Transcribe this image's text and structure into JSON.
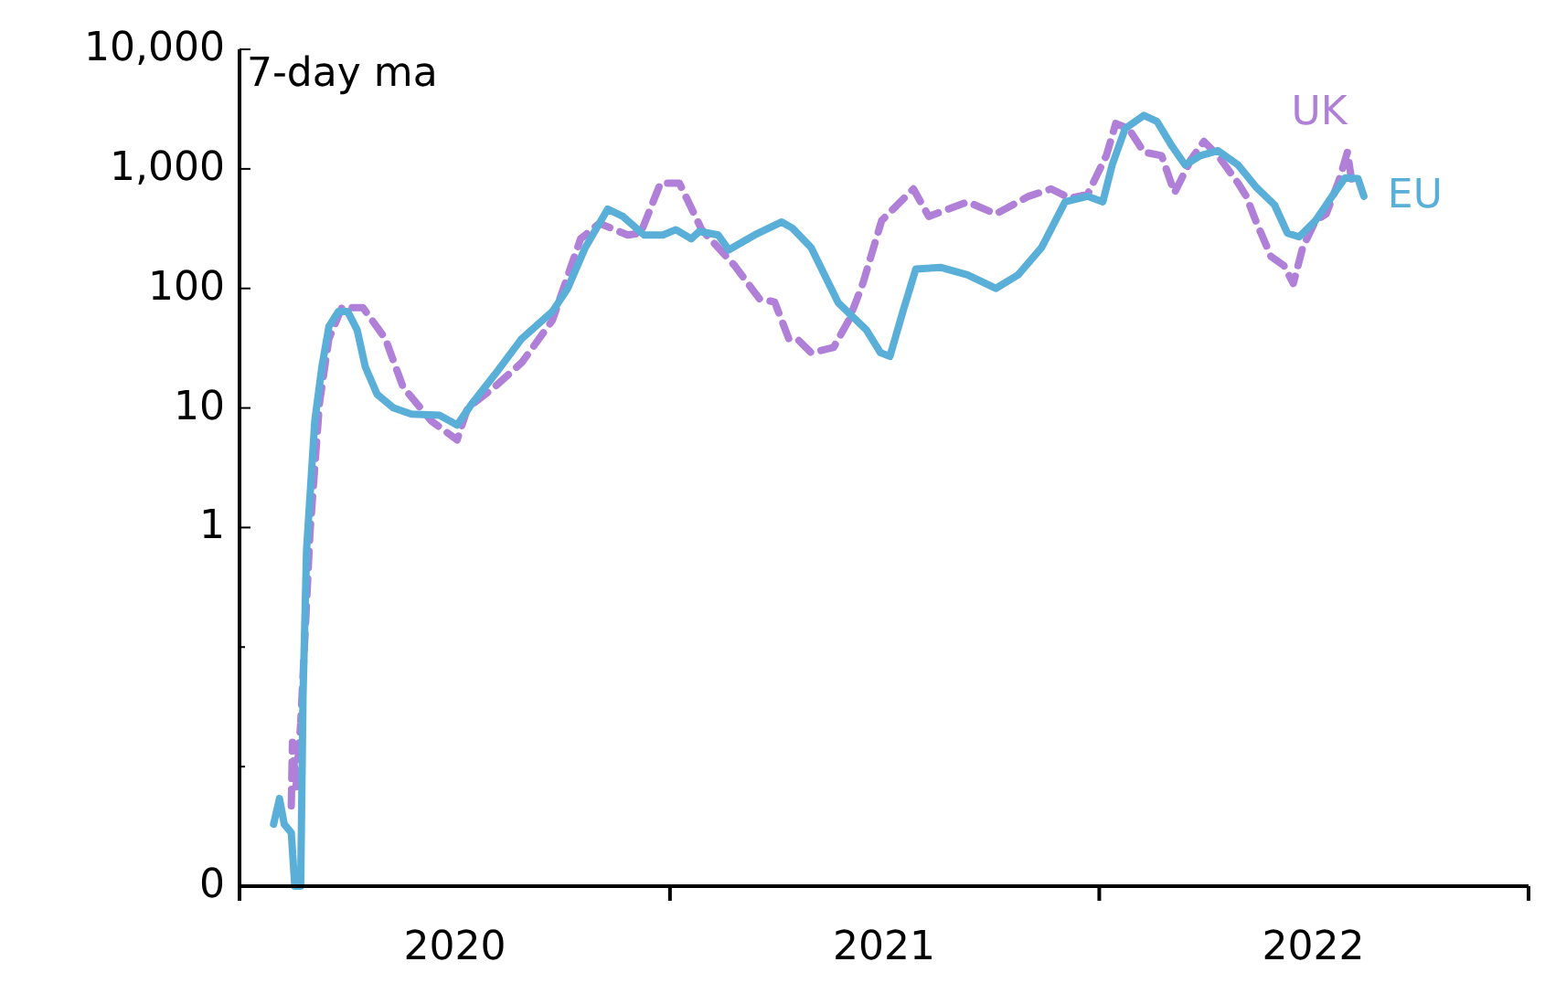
{
  "chart_data": {
    "type": "line",
    "annotations": [
      "7-day ma"
    ],
    "log": "y",
    "grid": false,
    "legend": false,
    "xlim": [
      "2020-01-01",
      "2023-01-01"
    ],
    "xticks": [
      {
        "value": "2020-01-01",
        "label": null
      },
      {
        "value": "2020-07-02",
        "label": "2020"
      },
      {
        "value": "2021-01-01",
        "label": null
      },
      {
        "value": "2021-07-02",
        "label": "2021"
      },
      {
        "value": "2022-01-01",
        "label": null
      },
      {
        "value": "2022-07-02",
        "label": "2022"
      },
      {
        "value": "2023-01-01",
        "label": null
      }
    ],
    "ylim": [
      0.001,
      10000
    ],
    "yticks": [
      {
        "value": 0.001,
        "label": "0"
      },
      {
        "value": 0.01,
        "label": null
      },
      {
        "value": 0.1,
        "label": null
      },
      1,
      10,
      100,
      {
        "value": 1000,
        "label": "1,000"
      },
      {
        "value": 10000,
        "label": "10,000"
      }
    ],
    "series": [
      {
        "name": "UK",
        "color": "#b07fd8",
        "line_style": "dashed",
        "x": [
          "2020-02-14",
          "2020-02-15",
          "2020-02-18",
          "2020-02-22",
          "2020-03-01",
          "2020-03-09",
          "2020-03-17",
          "2020-03-28",
          "2020-04-15",
          "2020-05-04",
          "2020-05-19",
          "2020-06-12",
          "2020-07-04",
          "2020-07-13",
          "2020-08-05",
          "2020-08-28",
          "2020-09-23",
          "2020-10-17",
          "2020-11-02",
          "2020-11-26",
          "2020-12-07",
          "2020-12-24",
          "2021-01-09",
          "2021-01-28",
          "2021-02-25",
          "2021-03-18",
          "2021-03-31",
          "2021-04-12",
          "2021-04-19",
          "2021-05-01",
          "2021-05-20",
          "2021-06-02",
          "2021-06-14",
          "2021-06-30",
          "2021-07-27",
          "2021-08-09",
          "2021-09-11",
          "2021-10-05",
          "2021-11-02",
          "2021-11-21",
          "2021-12-07",
          "2021-12-22",
          "2022-01-07",
          "2022-01-15",
          "2022-01-26",
          "2022-02-08",
          "2022-02-23",
          "2022-03-06",
          "2022-03-20",
          "2022-03-31",
          "2022-04-12",
          "2022-04-29",
          "2022-05-06",
          "2022-05-14",
          "2022-05-27",
          "2022-06-07",
          "2022-06-15",
          "2022-06-23",
          "2022-07-04",
          "2022-07-13",
          "2022-07-24",
          "2022-07-31",
          "2022-08-04"
        ],
        "values": [
          0.0047,
          0.016,
          0.0067,
          0.023,
          0.93,
          11,
          38,
          69,
          69,
          38,
          15,
          7.8,
          5.4,
          10,
          15,
          24,
          54,
          260,
          350,
          280,
          290,
          760,
          760,
          310,
          155,
          82,
          77,
          38,
          38,
          29,
          32,
          54,
          110,
          370,
          680,
          400,
          530,
          420,
          590,
          680,
          570,
          610,
          1290,
          2400,
          2170,
          1380,
          1290,
          630,
          1200,
          1700,
          1290,
          760,
          590,
          370,
          185,
          155,
          110,
          220,
          370,
          420,
          810,
          1380,
          760
        ]
      },
      {
        "name": "EU",
        "color": "#5aafd8",
        "line_style": "solid",
        "x": [
          "2020-01-30",
          "2020-02-04",
          "2020-02-08",
          "2020-02-14",
          "2020-02-17",
          "2020-02-22",
          "2020-02-24",
          "2020-02-27",
          "2020-03-05",
          "2020-03-11",
          "2020-03-17",
          "2020-03-25",
          "2020-04-02",
          "2020-04-10",
          "2020-04-17",
          "2020-04-27",
          "2020-05-11",
          "2020-05-26",
          "2020-06-19",
          "2020-07-04",
          "2020-07-17",
          "2020-08-05",
          "2020-08-28",
          "2020-09-23",
          "2020-10-06",
          "2020-10-21",
          "2020-11-09",
          "2020-11-22",
          "2020-12-10",
          "2020-12-26",
          "2021-01-06",
          "2021-01-19",
          "2021-01-26",
          "2021-02-11",
          "2021-02-20",
          "2021-03-14",
          "2021-04-06",
          "2021-04-15",
          "2021-05-01",
          "2021-05-24",
          "2021-06-17",
          "2021-06-29",
          "2021-07-07",
          "2021-07-18",
          "2021-07-29",
          "2021-08-19",
          "2021-09-11",
          "2021-10-05",
          "2021-10-24",
          "2021-11-13",
          "2021-12-03",
          "2021-12-22",
          "2022-01-04",
          "2022-01-12",
          "2022-01-23",
          "2022-02-08",
          "2022-02-19",
          "2022-03-04",
          "2022-03-15",
          "2022-03-28",
          "2022-04-12",
          "2022-04-29",
          "2022-05-14",
          "2022-05-30",
          "2022-06-10",
          "2022-06-20",
          "2022-07-04",
          "2022-07-20",
          "2022-07-29",
          "2022-08-09",
          "2022-08-14"
        ],
        "values": [
          0.0033,
          0.0054,
          0.0033,
          0.0028,
          0.001,
          0.001,
          0.039,
          0.65,
          7.8,
          22,
          48,
          64,
          64,
          45,
          22,
          13,
          10,
          8.9,
          8.7,
          7.2,
          11,
          19,
          38,
          64,
          100,
          220,
          460,
          400,
          280,
          280,
          310,
          260,
          300,
          280,
          210,
          280,
          360,
          320,
          220,
          76,
          45,
          29,
          27,
          64,
          145,
          150,
          130,
          100,
          130,
          220,
          530,
          590,
          530,
          1080,
          2170,
          2800,
          2500,
          1540,
          1080,
          1290,
          1420,
          1080,
          710,
          500,
          290,
          270,
          370,
          630,
          840,
          830,
          590
        ]
      }
    ]
  }
}
